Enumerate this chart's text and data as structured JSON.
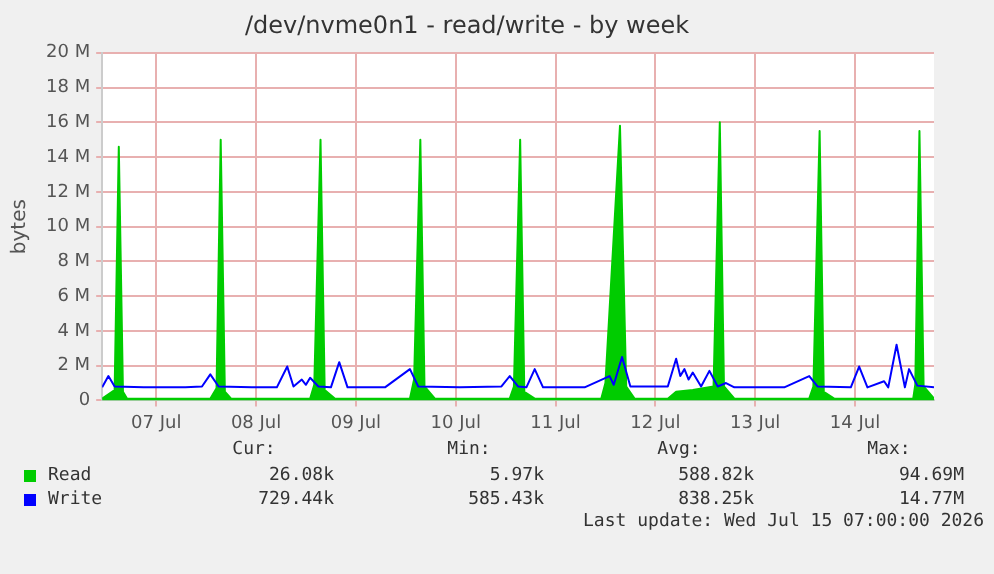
{
  "chart_data": {
    "type": "area",
    "title": "/dev/nvme0n1 - read/write - by week",
    "ylabel": "bytes",
    "xlim": [
      "2026-07-06T23:00",
      "2026-07-15T07:00"
    ],
    "xticks": [
      {
        "value": "2026-07-07T12:00",
        "label": "07 Jul"
      },
      {
        "value": "2026-07-08T12:00",
        "label": "08 Jul"
      },
      {
        "value": "2026-07-09T12:00",
        "label": "09 Jul"
      },
      {
        "value": "2026-07-10T12:00",
        "label": "10 Jul"
      },
      {
        "value": "2026-07-11T12:00",
        "label": "11 Jul"
      },
      {
        "value": "2026-07-12T12:00",
        "label": "12 Jul"
      },
      {
        "value": "2026-07-13T12:00",
        "label": "13 Jul"
      },
      {
        "value": "2026-07-14T12:00",
        "label": "14 Jul"
      }
    ],
    "ylim": [
      0,
      20000000
    ],
    "yticks": [
      0,
      {
        "value": 2000000,
        "label": "2 M"
      },
      {
        "value": 4000000,
        "label": "4 M"
      },
      {
        "value": 6000000,
        "label": "6 M"
      },
      {
        "value": 8000000,
        "label": "8 M"
      },
      {
        "value": 10000000,
        "label": "10 M"
      },
      {
        "value": 12000000,
        "label": "12 M"
      },
      {
        "value": 14000000,
        "label": "14 M"
      },
      {
        "value": 16000000,
        "label": "16 M"
      },
      {
        "value": 18000000,
        "label": "18 M"
      },
      {
        "value": 20000000,
        "label": "20 M"
      }
    ],
    "grid": true,
    "legend": "bottom left",
    "annotations": [
      "Cur:",
      "Min:",
      "Avg:",
      "Max:",
      "26.08k",
      "5.97k",
      "588.82k",
      "94.69M",
      "729.44k",
      "585.43k",
      "838.25k",
      "14.77M",
      "Last update: Wed Jul 15 07:00:00 2026"
    ],
    "series": [
      {
        "name": "Read",
        "type": "area",
        "color": "#00cc00",
        "x": [
          "2026-07-06T23:00",
          "2026-07-07T02:00",
          "2026-07-07T03:00",
          "2026-07-07T04:00",
          "2026-07-07T05:00",
          "2026-07-08T01:00",
          "2026-07-08T02:30",
          "2026-07-08T03:30",
          "2026-07-08T04:30",
          "2026-07-08T06:00",
          "2026-07-09T01:00",
          "2026-07-09T02:00",
          "2026-07-09T03:30",
          "2026-07-09T04:30",
          "2026-07-09T07:00",
          "2026-07-10T01:00",
          "2026-07-10T02:00",
          "2026-07-10T03:30",
          "2026-07-10T04:30",
          "2026-07-10T07:00",
          "2026-07-11T01:00",
          "2026-07-11T02:00",
          "2026-07-11T03:30",
          "2026-07-11T04:30",
          "2026-07-11T07:00",
          "2026-07-11T23:00",
          "2026-07-12T00:00",
          "2026-07-12T03:30",
          "2026-07-12T05:00",
          "2026-07-12T07:00",
          "2026-07-12T15:00",
          "2026-07-12T17:00",
          "2026-07-12T21:00",
          "2026-07-13T02:00",
          "2026-07-13T03:30",
          "2026-07-13T04:30",
          "2026-07-13T07:00",
          "2026-07-14T01:00",
          "2026-07-14T02:00",
          "2026-07-14T03:30",
          "2026-07-14T04:30",
          "2026-07-14T07:00",
          "2026-07-15T02:00",
          "2026-07-15T02:30",
          "2026-07-15T03:30",
          "2026-07-15T04:30",
          "2026-07-15T07:00"
        ],
        "values": [
          100000,
          600000,
          14600000,
          500000,
          100000,
          100000,
          700000,
          15000000,
          500000,
          100000,
          100000,
          900000,
          15000000,
          600000,
          100000,
          100000,
          1200000,
          15000000,
          800000,
          100000,
          100000,
          800000,
          15000000,
          500000,
          100000,
          100000,
          1000000,
          15800000,
          800000,
          100000,
          100000,
          500000,
          600000,
          800000,
          16000000,
          800000,
          100000,
          100000,
          800000,
          15500000,
          500000,
          100000,
          100000,
          900000,
          15500000,
          800000,
          100000
        ]
      },
      {
        "name": "Write",
        "type": "line",
        "color": "#0000ff",
        "x": [
          "2026-07-06T23:00",
          "2026-07-07T00:30",
          "2026-07-07T02:00",
          "2026-07-07T09:00",
          "2026-07-07T19:00",
          "2026-07-07T23:00",
          "2026-07-08T01:00",
          "2026-07-08T03:00",
          "2026-07-08T11:00",
          "2026-07-08T17:00",
          "2026-07-08T19:30",
          "2026-07-08T21:00",
          "2026-07-08T23:00",
          "2026-07-09T00:00",
          "2026-07-09T01:00",
          "2026-07-09T03:00",
          "2026-07-09T06:00",
          "2026-07-09T08:00",
          "2026-07-09T10:00",
          "2026-07-09T19:00",
          "2026-07-10T01:00",
          "2026-07-10T03:00",
          "2026-07-10T13:00",
          "2026-07-10T23:00",
          "2026-07-11T01:00",
          "2026-07-11T03:00",
          "2026-07-11T05:00",
          "2026-07-11T07:00",
          "2026-07-11T09:00",
          "2026-07-11T19:00",
          "2026-07-12T01:00",
          "2026-07-12T02:00",
          "2026-07-12T04:00",
          "2026-07-12T06:00",
          "2026-07-12T15:00",
          "2026-07-12T17:00",
          "2026-07-12T18:00",
          "2026-07-12T19:00",
          "2026-07-12T20:00",
          "2026-07-12T21:00",
          "2026-07-12T23:00",
          "2026-07-13T01:00",
          "2026-07-13T03:00",
          "2026-07-13T05:00",
          "2026-07-13T07:00",
          "2026-07-13T19:00",
          "2026-07-14T01:00",
          "2026-07-14T03:00",
          "2026-07-14T11:00",
          "2026-07-14T13:00",
          "2026-07-14T15:00",
          "2026-07-14T19:00",
          "2026-07-14T20:00",
          "2026-07-14T22:00",
          "2026-07-15T00:00",
          "2026-07-15T01:00",
          "2026-07-15T03:00",
          "2026-07-15T07:00"
        ],
        "values": [
          750000,
          1400000,
          800000,
          750000,
          750000,
          800000,
          1500000,
          800000,
          750000,
          750000,
          1950000,
          800000,
          1200000,
          900000,
          1300000,
          800000,
          750000,
          2200000,
          750000,
          750000,
          1800000,
          800000,
          750000,
          800000,
          1400000,
          800000,
          750000,
          1800000,
          750000,
          750000,
          1400000,
          900000,
          2500000,
          800000,
          800000,
          2400000,
          1400000,
          1800000,
          1200000,
          1600000,
          800000,
          1700000,
          800000,
          1000000,
          750000,
          750000,
          1400000,
          800000,
          750000,
          1950000,
          750000,
          1100000,
          750000,
          3200000,
          750000,
          1800000,
          850000,
          750000
        ]
      }
    ]
  }
}
